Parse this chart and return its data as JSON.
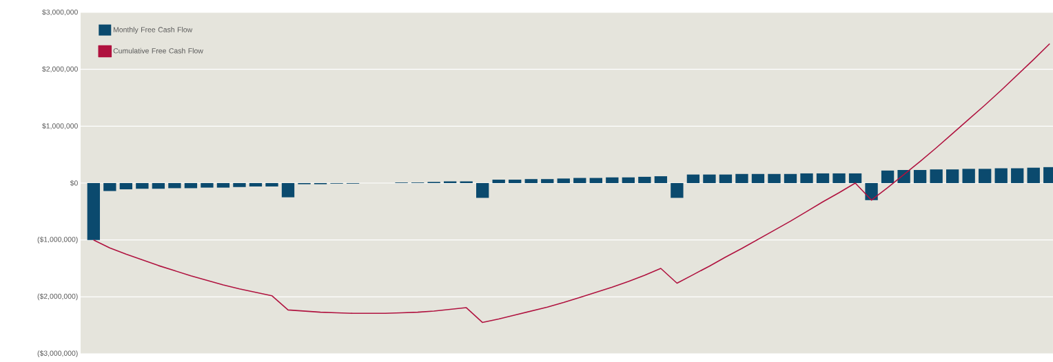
{
  "chart_data": {
    "type": "bar",
    "categories": [
      null,
      null,
      null,
      null,
      null,
      null,
      null,
      null,
      null,
      null,
      null,
      null,
      null,
      null,
      null,
      null,
      null,
      null,
      null,
      null,
      null,
      null,
      null,
      null,
      null,
      null,
      null,
      null,
      null,
      null,
      null,
      null,
      null,
      null,
      null,
      null,
      null,
      null,
      null,
      null,
      null,
      null,
      null,
      null,
      null,
      null,
      null,
      null,
      null,
      null,
      null,
      null,
      null,
      null,
      null,
      null,
      null,
      null,
      null,
      null
    ],
    "series": [
      {
        "name": "Monthly Free Cash Flow",
        "color": "#0b4a6e",
        "values": [
          -1000000,
          -140000,
          -110000,
          -100000,
          -100000,
          -90000,
          -90000,
          -80000,
          -80000,
          -70000,
          -60000,
          -60000,
          -250000,
          -20000,
          -20000,
          -10000,
          -10000,
          0,
          0,
          10000,
          10000,
          20000,
          30000,
          30000,
          -260000,
          60000,
          60000,
          70000,
          70000,
          80000,
          90000,
          90000,
          100000,
          100000,
          110000,
          120000,
          -260000,
          150000,
          150000,
          150000,
          160000,
          160000,
          160000,
          160000,
          170000,
          170000,
          170000,
          170000,
          -300000,
          220000,
          230000,
          230000,
          240000,
          240000,
          250000,
          250000,
          260000,
          260000,
          270000,
          280000
        ]
      },
      {
        "name": "Cumulative Free Cash Flow",
        "type": "line",
        "color": "#b0123f",
        "values": [
          -1000000,
          -1140000,
          -1250000,
          -1350000,
          -1450000,
          -1540000,
          -1630000,
          -1710000,
          -1790000,
          -1860000,
          -1920000,
          -1980000,
          -2230000,
          -2250000,
          -2270000,
          -2280000,
          -2290000,
          -2290000,
          -2290000,
          -2280000,
          -2270000,
          -2250000,
          -2220000,
          -2190000,
          -2450000,
          -2390000,
          -2320000,
          -2250000,
          -2180000,
          -2100000,
          -2010000,
          -1920000,
          -1830000,
          -1730000,
          -1620000,
          -1500000,
          -1760000,
          -1610000,
          -1460000,
          -1300000,
          -1150000,
          -990000,
          -830000,
          -670000,
          -500000,
          -330000,
          -170000,
          0,
          -300000,
          -80000,
          150000,
          380000,
          620000,
          870000,
          1120000,
          1370000,
          1630000,
          1900000,
          2170000,
          2450000
        ]
      }
    ],
    "ylim": [
      -3000000,
      3000000
    ],
    "yticks": [
      {
        "value": -3000000,
        "label": "($3,000,000)"
      },
      {
        "value": -2000000,
        "label": "($2,000,000)"
      },
      {
        "value": -1000000,
        "label": "($1,000,000)"
      },
      {
        "value": 0,
        "label": "$0"
      },
      {
        "value": 1000000,
        "label": "$1,000,000"
      },
      {
        "value": 2000000,
        "label": "$2,000,000"
      },
      {
        "value": 3000000,
        "label": "$3,000,000"
      }
    ],
    "grid": "y",
    "legend": "top left",
    "marker": "none",
    "line_style": "solid"
  }
}
